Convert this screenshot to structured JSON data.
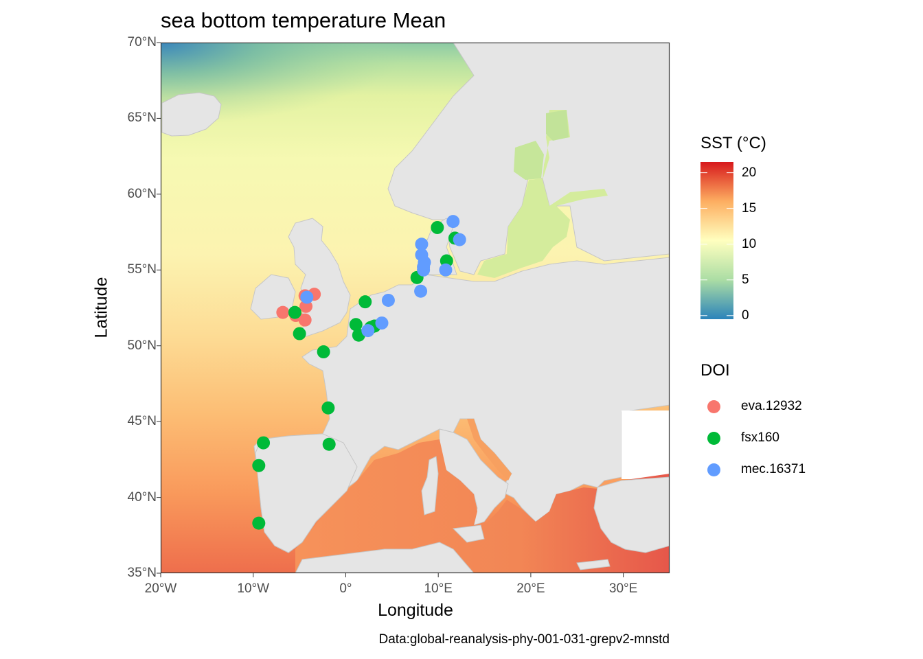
{
  "title": "sea bottom temperature Mean",
  "caption": "Data:global-reanalysis-phy-001-031-grepv2-mnstd",
  "chart_data": {
    "type": "map",
    "title": "sea bottom temperature Mean",
    "xlabel": "Longitude",
    "ylabel": "Latitude",
    "xlim": [
      -20,
      35
    ],
    "ylim": [
      35,
      70
    ],
    "x_ticks": [
      -20,
      -10,
      0,
      10,
      20,
      30
    ],
    "x_tick_labels": [
      "20°W",
      "10°W",
      "0°",
      "10°E",
      "20°E",
      "30°E"
    ],
    "y_ticks": [
      35,
      40,
      45,
      50,
      55,
      60,
      65,
      70
    ],
    "y_tick_labels": [
      "35°N",
      "40°N",
      "45°N",
      "50°N",
      "55°N",
      "60°N",
      "65°N",
      "70°N"
    ],
    "fill_legend": {
      "title": "SST (°C)",
      "range": [
        -0.5,
        21.5
      ],
      "breaks": [
        0,
        5,
        10,
        15,
        20
      ],
      "break_labels": [
        "0",
        "5",
        "10",
        "15",
        "20"
      ],
      "palette": [
        "#2b83ba",
        "#abdda4",
        "#ffffbf",
        "#fdae61",
        "#d7191c"
      ]
    },
    "color_legend": {
      "title": "DOI",
      "items": [
        {
          "label": "eva.12932",
          "color": "#F8766D"
        },
        {
          "label": "fsx160",
          "color": "#00BA38"
        },
        {
          "label": "mec.16371",
          "color": "#619CFF"
        }
      ]
    },
    "series": [
      {
        "doi": "eva.12932",
        "points": [
          [
            -6.8,
            52.2
          ],
          [
            -5.4,
            52.0
          ],
          [
            -4.3,
            52.6
          ],
          [
            -4.4,
            51.7
          ],
          [
            -3.4,
            53.4
          ],
          [
            -4.4,
            53.3
          ]
        ]
      },
      {
        "doi": "fsx160",
        "points": [
          [
            -5.5,
            52.2
          ],
          [
            -5.0,
            50.8
          ],
          [
            -2.4,
            49.6
          ],
          [
            2.1,
            52.9
          ],
          [
            1.1,
            51.4
          ],
          [
            1.4,
            50.7
          ],
          [
            2.7,
            51.2
          ],
          [
            3.1,
            51.3
          ],
          [
            7.7,
            54.5
          ],
          [
            9.9,
            57.8
          ],
          [
            10.9,
            55.6
          ],
          [
            11.8,
            57.1
          ],
          [
            -1.9,
            45.9
          ],
          [
            -1.8,
            43.5
          ],
          [
            -8.9,
            43.6
          ],
          [
            -9.4,
            42.1
          ],
          [
            -9.4,
            38.3
          ]
        ]
      },
      {
        "doi": "mec.16371",
        "points": [
          [
            -4.2,
            53.2
          ],
          [
            2.4,
            51.0
          ],
          [
            3.9,
            51.5
          ],
          [
            4.6,
            53.0
          ],
          [
            8.1,
            53.6
          ],
          [
            8.2,
            56.7
          ],
          [
            8.2,
            56.0
          ],
          [
            8.5,
            55.5
          ],
          [
            8.4,
            55.2
          ],
          [
            8.4,
            55.0
          ],
          [
            10.8,
            55.0
          ],
          [
            11.6,
            58.2
          ],
          [
            12.3,
            57.0
          ]
        ]
      }
    ]
  }
}
